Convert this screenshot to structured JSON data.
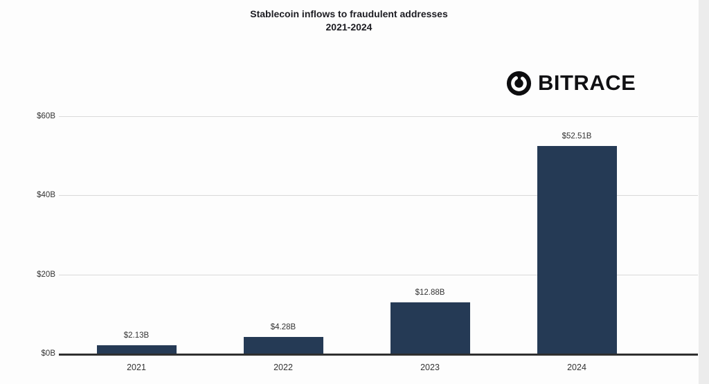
{
  "chart": {
    "title_line1": "Stablecoin inflows to fraudulent addresses",
    "title_line2": "2021-2024"
  },
  "logo": {
    "text": "BITRACE"
  },
  "chart_data": {
    "type": "bar",
    "title": "Stablecoin inflows to fraudulent addresses 2021-2024",
    "categories": [
      "2021",
      "2022",
      "2023",
      "2024"
    ],
    "values": [
      2.13,
      4.28,
      12.88,
      52.51
    ],
    "value_labels": [
      "$2.13B",
      "$4.28B",
      "$12.88B",
      "$52.51B"
    ],
    "xlabel": "",
    "ylabel": "",
    "ylim": [
      0,
      60
    ],
    "yticks": [
      0,
      20,
      40,
      60
    ],
    "ytick_labels": [
      "$0B",
      "$20B",
      "$40B",
      "$60B"
    ],
    "grid": true,
    "legend": false,
    "bar_color": "#253a55",
    "grid_color": "#d9d9d9",
    "axis_color": "#2f2f2f",
    "label_color": "#333333",
    "title_color": "#1c1c22"
  }
}
